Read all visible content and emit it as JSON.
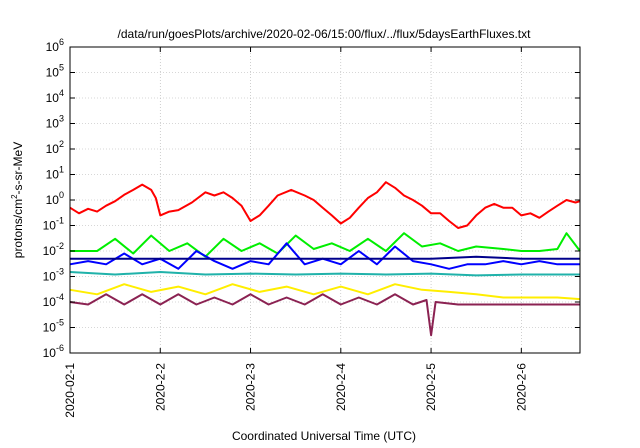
{
  "chart_data": {
    "type": "line",
    "title": "/data/run/goesPlots/archive/2020-02-06/15:00/flux/../flux/5daysEarthFluxes.txt",
    "xlabel": "Coordinated Universal Time (UTC)",
    "ylabel": {
      "base": "protons/cm",
      "sup": "2",
      "rest": "-s-sr-MeV"
    },
    "yscale": "log",
    "ylim": [
      1e-06,
      1000000.0
    ],
    "xlim": [
      0,
      5.65
    ],
    "grid": true,
    "x_ticks": [
      {
        "x": 0,
        "label": "2020-02-1"
      },
      {
        "x": 1,
        "label": "2020-2-2"
      },
      {
        "x": 2,
        "label": "2020-2-3"
      },
      {
        "x": 3,
        "label": "2020-2-4"
      },
      {
        "x": 4,
        "label": "2020-2-5"
      },
      {
        "x": 5,
        "label": "2020-2-6"
      }
    ],
    "y_ticks": [
      {
        "v": 1e-06,
        "base": "10",
        "exp": "-6"
      },
      {
        "v": 1e-05,
        "base": "10",
        "exp": "-5"
      },
      {
        "v": 0.0001,
        "base": "10",
        "exp": "-4"
      },
      {
        "v": 0.001,
        "base": "10",
        "exp": "-3"
      },
      {
        "v": 0.01,
        "base": "10",
        "exp": "-2"
      },
      {
        "v": 0.1,
        "base": "10",
        "exp": "-1"
      },
      {
        "v": 1.0,
        "base": "10",
        "exp": "0"
      },
      {
        "v": 10.0,
        "base": "10",
        "exp": "1"
      },
      {
        "v": 100.0,
        "base": "10",
        "exp": "2"
      },
      {
        "v": 1000.0,
        "base": "10",
        "exp": "3"
      },
      {
        "v": 10000.0,
        "base": "10",
        "exp": "4"
      },
      {
        "v": 100000.0,
        "base": "10",
        "exp": "5"
      },
      {
        "v": 1000000.0,
        "base": "10",
        "exp": "6"
      }
    ],
    "series": [
      {
        "color": "#ff0000",
        "points": [
          [
            0,
            0.5
          ],
          [
            0.1,
            0.3
          ],
          [
            0.2,
            0.45
          ],
          [
            0.3,
            0.35
          ],
          [
            0.4,
            0.6
          ],
          [
            0.5,
            0.9
          ],
          [
            0.6,
            1.6
          ],
          [
            0.7,
            2.5
          ],
          [
            0.8,
            4
          ],
          [
            0.9,
            2.5
          ],
          [
            0.95,
            1.2
          ],
          [
            1.0,
            0.25
          ],
          [
            1.1,
            0.35
          ],
          [
            1.2,
            0.4
          ],
          [
            1.35,
            0.8
          ],
          [
            1.5,
            2
          ],
          [
            1.6,
            1.5
          ],
          [
            1.7,
            2
          ],
          [
            1.8,
            1.2
          ],
          [
            1.9,
            0.6
          ],
          [
            2.0,
            0.15
          ],
          [
            2.1,
            0.25
          ],
          [
            2.2,
            0.6
          ],
          [
            2.3,
            1.5
          ],
          [
            2.45,
            2.5
          ],
          [
            2.6,
            1.5
          ],
          [
            2.7,
            1
          ],
          [
            2.8,
            0.5
          ],
          [
            2.9,
            0.25
          ],
          [
            3.0,
            0.12
          ],
          [
            3.1,
            0.2
          ],
          [
            3.2,
            0.5
          ],
          [
            3.3,
            1.2
          ],
          [
            3.4,
            2
          ],
          [
            3.5,
            5
          ],
          [
            3.6,
            3
          ],
          [
            3.7,
            1.5
          ],
          [
            3.8,
            1
          ],
          [
            3.9,
            0.6
          ],
          [
            4.0,
            0.3
          ],
          [
            4.1,
            0.3
          ],
          [
            4.2,
            0.15
          ],
          [
            4.3,
            0.08
          ],
          [
            4.4,
            0.1
          ],
          [
            4.5,
            0.25
          ],
          [
            4.6,
            0.5
          ],
          [
            4.7,
            0.7
          ],
          [
            4.8,
            0.5
          ],
          [
            4.9,
            0.5
          ],
          [
            5.0,
            0.25
          ],
          [
            5.1,
            0.3
          ],
          [
            5.2,
            0.2
          ],
          [
            5.3,
            0.35
          ],
          [
            5.4,
            0.6
          ],
          [
            5.5,
            1.0
          ],
          [
            5.6,
            0.8
          ],
          [
            5.65,
            0.9
          ]
        ]
      },
      {
        "color": "#00ee00",
        "points": [
          [
            0,
            0.01
          ],
          [
            0.3,
            0.01
          ],
          [
            0.5,
            0.03
          ],
          [
            0.7,
            0.008
          ],
          [
            0.9,
            0.04
          ],
          [
            1.1,
            0.01
          ],
          [
            1.3,
            0.02
          ],
          [
            1.5,
            0.006
          ],
          [
            1.7,
            0.03
          ],
          [
            1.9,
            0.01
          ],
          [
            2.1,
            0.02
          ],
          [
            2.3,
            0.008
          ],
          [
            2.5,
            0.04
          ],
          [
            2.7,
            0.012
          ],
          [
            2.9,
            0.02
          ],
          [
            3.1,
            0.01
          ],
          [
            3.3,
            0.03
          ],
          [
            3.5,
            0.01
          ],
          [
            3.7,
            0.05
          ],
          [
            3.9,
            0.015
          ],
          [
            4.1,
            0.02
          ],
          [
            4.3,
            0.01
          ],
          [
            4.5,
            0.015
          ],
          [
            4.8,
            0.012
          ],
          [
            5.0,
            0.01
          ],
          [
            5.2,
            0.01
          ],
          [
            5.4,
            0.012
          ],
          [
            5.5,
            0.05
          ],
          [
            5.65,
            0.01
          ]
        ]
      },
      {
        "color": "#0000ff",
        "points": [
          [
            0,
            0.003
          ],
          [
            0.2,
            0.004
          ],
          [
            0.4,
            0.003
          ],
          [
            0.6,
            0.008
          ],
          [
            0.8,
            0.003
          ],
          [
            1.0,
            0.005
          ],
          [
            1.2,
            0.002
          ],
          [
            1.4,
            0.01
          ],
          [
            1.6,
            0.004
          ],
          [
            1.8,
            0.002
          ],
          [
            2.0,
            0.004
          ],
          [
            2.2,
            0.003
          ],
          [
            2.4,
            0.02
          ],
          [
            2.6,
            0.003
          ],
          [
            2.8,
            0.005
          ],
          [
            3.0,
            0.003
          ],
          [
            3.2,
            0.01
          ],
          [
            3.4,
            0.003
          ],
          [
            3.6,
            0.015
          ],
          [
            3.8,
            0.004
          ],
          [
            4.0,
            0.003
          ],
          [
            4.2,
            0.002
          ],
          [
            4.4,
            0.003
          ],
          [
            4.6,
            0.003
          ],
          [
            4.8,
            0.004
          ],
          [
            5.0,
            0.003
          ],
          [
            5.2,
            0.004
          ],
          [
            5.4,
            0.003
          ],
          [
            5.65,
            0.003
          ]
        ]
      },
      {
        "color": "#00008b",
        "points": [
          [
            0,
            0.005
          ],
          [
            1.0,
            0.005
          ],
          [
            2.0,
            0.005
          ],
          [
            3.0,
            0.005
          ],
          [
            4.0,
            0.005
          ],
          [
            4.5,
            0.006
          ],
          [
            5.0,
            0.005
          ],
          [
            5.65,
            0.005
          ]
        ]
      },
      {
        "color": "#20b2aa",
        "points": [
          [
            0,
            0.0015
          ],
          [
            0.5,
            0.0012
          ],
          [
            1.0,
            0.0015
          ],
          [
            1.5,
            0.0012
          ],
          [
            2.0,
            0.0013
          ],
          [
            2.5,
            0.0012
          ],
          [
            3.0,
            0.0013
          ],
          [
            3.5,
            0.0012
          ],
          [
            4.0,
            0.0013
          ],
          [
            4.5,
            0.0011
          ],
          [
            5.0,
            0.0012
          ],
          [
            5.65,
            0.0012
          ]
        ]
      },
      {
        "color": "#ffee00",
        "points": [
          [
            0,
            0.0003
          ],
          [
            0.3,
            0.0002
          ],
          [
            0.6,
            0.0005
          ],
          [
            0.9,
            0.00025
          ],
          [
            1.2,
            0.0004
          ],
          [
            1.5,
            0.0002
          ],
          [
            1.8,
            0.0005
          ],
          [
            2.1,
            0.00025
          ],
          [
            2.4,
            0.0004
          ],
          [
            2.7,
            0.0002
          ],
          [
            3.0,
            0.0004
          ],
          [
            3.3,
            0.0002
          ],
          [
            3.6,
            0.0005
          ],
          [
            3.9,
            0.0003
          ],
          [
            4.2,
            0.00025
          ],
          [
            4.5,
            0.0002
          ],
          [
            4.8,
            0.00015
          ],
          [
            5.1,
            0.00015
          ],
          [
            5.4,
            0.00015
          ],
          [
            5.65,
            0.00013
          ]
        ]
      },
      {
        "color": "#8b2252",
        "points": [
          [
            0,
            0.0001
          ],
          [
            0.2,
            8e-05
          ],
          [
            0.4,
            0.0002
          ],
          [
            0.6,
            8e-05
          ],
          [
            0.8,
            0.0002
          ],
          [
            1.0,
            8e-05
          ],
          [
            1.2,
            0.0002
          ],
          [
            1.4,
            8e-05
          ],
          [
            1.6,
            0.00015
          ],
          [
            1.8,
            8e-05
          ],
          [
            2.0,
            0.0002
          ],
          [
            2.2,
            8e-05
          ],
          [
            2.4,
            0.00015
          ],
          [
            2.6,
            8e-05
          ],
          [
            2.8,
            0.0002
          ],
          [
            3.0,
            8e-05
          ],
          [
            3.2,
            0.00015
          ],
          [
            3.4,
            8e-05
          ],
          [
            3.6,
            0.0002
          ],
          [
            3.8,
            8e-05
          ],
          [
            3.95,
            0.00012
          ],
          [
            4.0,
            5e-06
          ],
          [
            4.05,
            0.0001
          ],
          [
            4.3,
            8e-05
          ],
          [
            4.6,
            8e-05
          ],
          [
            5.0,
            8e-05
          ],
          [
            5.4,
            8e-05
          ],
          [
            5.65,
            8e-05
          ]
        ]
      }
    ]
  }
}
